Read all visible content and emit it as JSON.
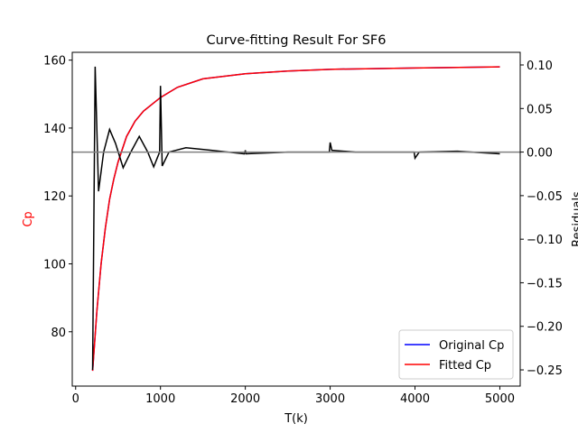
{
  "chart_data": {
    "type": "line",
    "title": "Curve-fitting Result For SF6",
    "x_label": "T(k)",
    "y_label": "Cp",
    "y_label_color": "#ff0000",
    "y2_label": "Residuals",
    "x": [
      200,
      250,
      300,
      350,
      400,
      450,
      500,
      600,
      700,
      800,
      1000,
      1200,
      1500,
      2000,
      2500,
      3000,
      4000,
      5000
    ],
    "series": [
      {
        "name": "Original Cp",
        "color": "#0000ff",
        "values": [
          68.5,
          86,
          100,
          110.5,
          119,
          125,
          130,
          137.5,
          142,
          145,
          149,
          152,
          154.5,
          156,
          156.8,
          157.3,
          157.7,
          158
        ]
      },
      {
        "name": "Fitted Cp",
        "color": "#ff0000",
        "values": [
          68.5,
          86,
          100,
          110.5,
          119,
          125,
          130,
          137.5,
          142,
          145,
          149,
          152,
          154.5,
          156,
          156.8,
          157.3,
          157.7,
          158
        ]
      }
    ],
    "residuals": {
      "color": "#000000",
      "axis": "y2",
      "x": [
        200,
        230,
        270,
        330,
        400,
        470,
        560,
        650,
        750,
        850,
        920,
        990,
        1000,
        1020,
        1100,
        1300,
        1600,
        1990,
        2000,
        2010,
        2500,
        2990,
        3000,
        3020,
        3300,
        3990,
        4000,
        4050,
        4500,
        5000
      ],
      "values": [
        -0.25,
        0.098,
        -0.045,
        0.0,
        0.026,
        0.01,
        -0.018,
        0.0,
        0.018,
        0.0,
        -0.017,
        0.0,
        0.076,
        -0.016,
        0.0,
        0.005,
        0.002,
        -0.002,
        0.002,
        -0.002,
        0.0,
        0.0,
        0.011,
        0.002,
        0.0,
        0.0,
        -0.007,
        0.0,
        0.001,
        -0.002
      ]
    },
    "zero_line": {
      "value": 0,
      "axis": "y2",
      "color": "#808080"
    },
    "xlim": [
      -40,
      5240
    ],
    "ylim": [
      64,
      162.3
    ],
    "y2lim": [
      -0.2686,
      0.1145
    ],
    "xticks": [
      0,
      1000,
      2000,
      3000,
      4000,
      5000
    ],
    "yticks": [
      80,
      100,
      120,
      140,
      160
    ],
    "y2ticks": [
      {
        "value": 0.1,
        "label": "0.10"
      },
      {
        "value": 0.05,
        "label": "0.05"
      },
      {
        "value": 0,
        "label": "0.00"
      },
      {
        "value": -0.05,
        "label": "−0.05"
      },
      {
        "value": -0.1,
        "label": "−0.10"
      },
      {
        "value": -0.15,
        "label": "−0.15"
      },
      {
        "value": -0.2,
        "label": "−0.20"
      },
      {
        "value": -0.25,
        "label": "−0.25"
      }
    ],
    "legend": "lower right",
    "grid": false
  }
}
